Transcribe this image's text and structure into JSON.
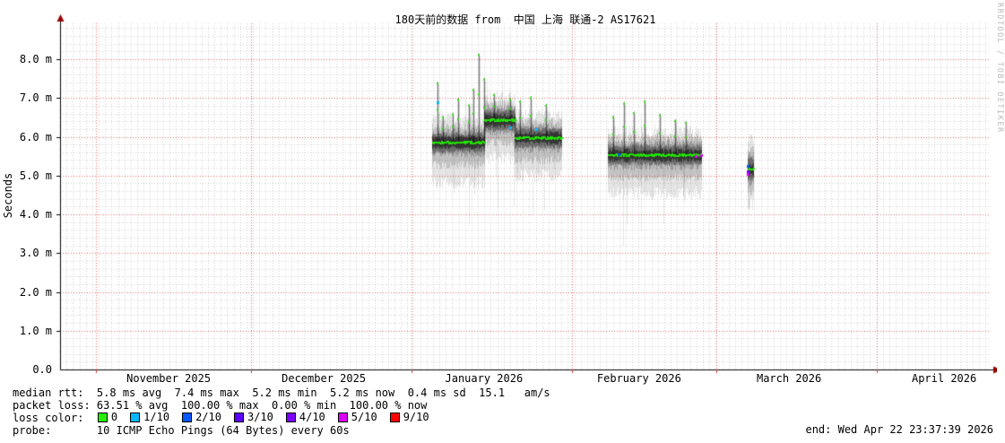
{
  "header": {
    "title": "180天前的数据 from  中国 上海 联通-2 AS17621"
  },
  "watermark": "RRDTOOL / TOBI OETIKER",
  "footer": {
    "end_label": "end: Wed Apr 22 23:37:39 2026"
  },
  "stats": {
    "rows": [
      {
        "prefix": "median rtt:  ",
        "value": "5.8 ms avg  7.4 ms max  5.2 ms min  5.2 ms now  0.4 ms sd  15.1   am/s"
      },
      {
        "prefix": "packet loss: ",
        "value": "63.51 % avg  100.00 % max  0.00 % min  100.00 % now"
      }
    ],
    "loss_color_prefix": "loss color:  ",
    "probe_prefix": "probe:       ",
    "probe_value": "10 ICMP Echo Pings (64 Bytes) every 60s"
  },
  "loss_legend": [
    {
      "label": "0",
      "color": "#26f000"
    },
    {
      "label": "1/10",
      "color": "#00b8ff"
    },
    {
      "label": "2/10",
      "color": "#0059ff"
    },
    {
      "label": "3/10",
      "color": "#5e00ff"
    },
    {
      "label": "4/10",
      "color": "#7e00ff"
    },
    {
      "label": "5/10",
      "color": "#dd00ff"
    },
    {
      "label": "9/10",
      "color": "#ff0000"
    }
  ],
  "chart_data": {
    "type": "line",
    "variant": "smokeping-latency-smoke",
    "title": "180天前的数据 from  中国 上海 联通-2 AS17621",
    "xlabel": "",
    "ylabel": "Seconds",
    "unit": "milliseconds shown as m",
    "ylim_ms": [
      0,
      8.9
    ],
    "grid": "minor dotted gray, major dashed red",
    "y_ticks": [
      {
        "ms": 0,
        "label": "0.0"
      },
      {
        "ms": 1,
        "label": "1.0 m"
      },
      {
        "ms": 2,
        "label": "2.0 m"
      },
      {
        "ms": 3,
        "label": "3.0 m"
      },
      {
        "ms": 4,
        "label": "4.0 m"
      },
      {
        "ms": 5,
        "label": "5.0 m"
      },
      {
        "ms": 6,
        "label": "6.0 m"
      },
      {
        "ms": 7,
        "label": "7.0 m"
      },
      {
        "ms": 8,
        "label": "8.0 m"
      }
    ],
    "x_range": [
      "2025-10-25",
      "2026-04-23"
    ],
    "x_month_lines": [
      "2025-11-01",
      "2025-12-01",
      "2026-01-01",
      "2026-02-01",
      "2026-03-01",
      "2026-04-01"
    ],
    "x_labels": [
      {
        "date": "2025-11-15",
        "label": "November 2025"
      },
      {
        "date": "2025-12-15",
        "label": "December 2025"
      },
      {
        "date": "2026-01-15",
        "label": "January 2026"
      },
      {
        "date": "2026-02-14",
        "label": "February 2026"
      },
      {
        "date": "2026-03-15",
        "label": "March 2026"
      },
      {
        "date": "2026-04-14",
        "label": "April 2026"
      }
    ],
    "median_color": "#21e100",
    "segments": [
      {
        "start": "2026-01-05",
        "end": "2026-01-15",
        "median_ms": 5.85,
        "inner": [
          5.62,
          6.06
        ],
        "mid": [
          5.38,
          6.25
        ],
        "outer": [
          5.0,
          6.45
        ],
        "whisker_low": 4.45
      },
      {
        "start": "2026-01-15",
        "end": "2026-01-21",
        "median_ms": 6.42,
        "inner": [
          6.18,
          6.66
        ],
        "mid": [
          5.95,
          6.85
        ],
        "outer": [
          5.62,
          7.02
        ],
        "whisker_low": 4.9
      },
      {
        "start": "2026-01-21",
        "end": "2026-01-30",
        "median_ms": 5.97,
        "inner": [
          5.74,
          6.2
        ],
        "mid": [
          5.5,
          6.4
        ],
        "outer": [
          5.18,
          6.58
        ],
        "whisker_low": 4.7
      },
      {
        "start": "2026-02-08",
        "end": "2026-02-26",
        "median_ms": 5.52,
        "inner": [
          5.3,
          5.76
        ],
        "mid": [
          5.05,
          5.96
        ],
        "outer": [
          4.72,
          6.14
        ],
        "whisker_low": 4.3
      },
      {
        "start": "2026-03-07",
        "end": "2026-03-08",
        "median_ms": 5.15,
        "inner": [
          4.9,
          5.45
        ],
        "mid": [
          4.7,
          5.72
        ],
        "outer": [
          4.45,
          5.95
        ],
        "whisker_low": 4.4
      }
    ],
    "spikes": [
      {
        "date": "2026-01-06",
        "peak_ms": 7.42
      },
      {
        "date": "2026-01-07",
        "peak_ms": 6.55
      },
      {
        "date": "2026-01-09",
        "peak_ms": 6.62
      },
      {
        "date": "2026-01-10",
        "peak_ms": 7.0
      },
      {
        "date": "2026-01-12",
        "peak_ms": 6.85
      },
      {
        "date": "2026-01-13",
        "peak_ms": 7.25
      },
      {
        "date": "2026-01-14",
        "peak_ms": 8.15
      },
      {
        "date": "2026-01-15",
        "peak_ms": 7.52
      },
      {
        "date": "2026-01-17",
        "peak_ms": 7.12
      },
      {
        "date": "2026-01-20",
        "peak_ms": 7.0
      },
      {
        "date": "2026-01-22",
        "peak_ms": 6.95
      },
      {
        "date": "2026-01-24",
        "peak_ms": 7.05
      },
      {
        "date": "2026-01-27",
        "peak_ms": 6.85
      },
      {
        "date": "2026-02-09",
        "peak_ms": 6.55
      },
      {
        "date": "2026-02-11",
        "peak_ms": 6.9
      },
      {
        "date": "2026-02-13",
        "peak_ms": 6.65
      },
      {
        "date": "2026-02-15",
        "peak_ms": 6.95
      },
      {
        "date": "2026-02-18",
        "peak_ms": 6.6
      },
      {
        "date": "2026-02-21",
        "peak_ms": 6.45
      },
      {
        "date": "2026-02-23",
        "peak_ms": 6.4
      }
    ],
    "loss_dots": [
      {
        "date": "2026-01-06",
        "ms": 6.9,
        "color": "#00b8ff"
      },
      {
        "date": "2026-01-20",
        "ms": 6.25,
        "color": "#00b8ff"
      },
      {
        "date": "2026-01-25",
        "ms": 6.2,
        "color": "#00b8ff"
      },
      {
        "date": "2026-02-10",
        "ms": 5.55,
        "color": "#0059ff"
      },
      {
        "date": "2026-02-25",
        "ms": 5.5,
        "color": "#dd00ff"
      },
      {
        "date": "2026-02-26",
        "ms": 5.53,
        "color": "#dd00ff"
      },
      {
        "date": "2026-03-07",
        "ms": 5.25,
        "color": "#0059ff"
      },
      {
        "date": "2026-03-07",
        "ms": 5.12,
        "color": "#7e00ff"
      },
      {
        "date": "2026-03-07",
        "ms": 5.03,
        "color": "#dd00ff"
      }
    ]
  }
}
